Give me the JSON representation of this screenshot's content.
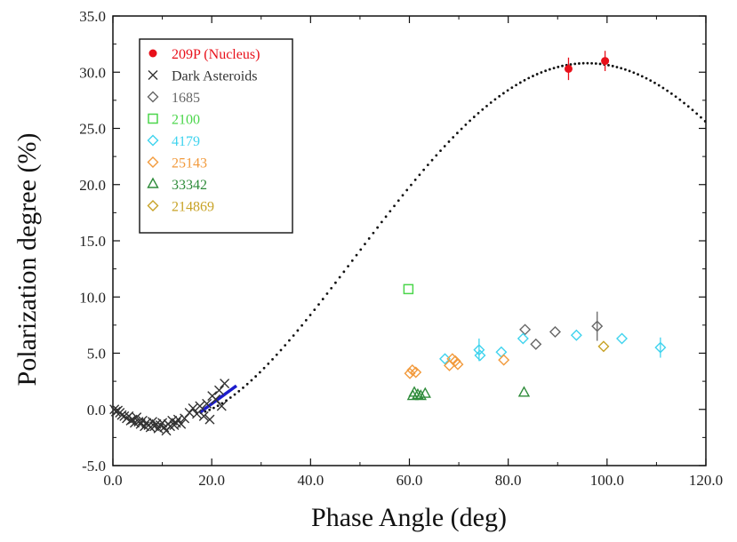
{
  "chart_data": {
    "type": "scatter",
    "xlabel": "Phase Angle (deg)",
    "ylabel": "Polarization degree (%)",
    "xlim": [
      0,
      120
    ],
    "ylim": [
      -5,
      35
    ],
    "x_ticks": [
      "0.0",
      "20.0",
      "40.0",
      "60.0",
      "80.0",
      "100.0",
      "120.0"
    ],
    "y_ticks": [
      "-5.0",
      "0.0",
      "5.0",
      "10.0",
      "15.0",
      "20.0",
      "25.0",
      "30.0",
      "35.0"
    ],
    "grid": false,
    "legend_position": "top-left",
    "series": [
      {
        "name": "209P (Nucleus)",
        "marker": "filled-circle",
        "color": "#e8101a",
        "points": [
          {
            "x": 92.2,
            "y": 30.3,
            "err": 1.0
          },
          {
            "x": 99.6,
            "y": 31.0,
            "err": 0.9
          }
        ]
      },
      {
        "name": "Dark Asteroids",
        "marker": "x",
        "color": "#333333",
        "points": [
          {
            "x": 0.3,
            "y": 0.0
          },
          {
            "x": 0.6,
            "y": -0.2
          },
          {
            "x": 1.0,
            "y": -0.1
          },
          {
            "x": 1.4,
            "y": -0.3
          },
          {
            "x": 1.8,
            "y": -0.5
          },
          {
            "x": 2.3,
            "y": -0.6
          },
          {
            "x": 2.8,
            "y": -0.8
          },
          {
            "x": 3.2,
            "y": -0.6
          },
          {
            "x": 3.6,
            "y": -1.0
          },
          {
            "x": 4.0,
            "y": -0.9
          },
          {
            "x": 4.4,
            "y": -1.2
          },
          {
            "x": 4.8,
            "y": -0.7
          },
          {
            "x": 5.2,
            "y": -1.1
          },
          {
            "x": 5.6,
            "y": -1.3
          },
          {
            "x": 6.0,
            "y": -1.0
          },
          {
            "x": 6.4,
            "y": -1.5
          },
          {
            "x": 6.8,
            "y": -1.2
          },
          {
            "x": 7.2,
            "y": -1.4
          },
          {
            "x": 7.6,
            "y": -1.6
          },
          {
            "x": 8.0,
            "y": -1.1
          },
          {
            "x": 8.4,
            "y": -1.5
          },
          {
            "x": 8.8,
            "y": -1.3
          },
          {
            "x": 9.2,
            "y": -1.7
          },
          {
            "x": 9.6,
            "y": -1.4
          },
          {
            "x": 10.0,
            "y": -1.2
          },
          {
            "x": 10.4,
            "y": -1.6
          },
          {
            "x": 10.8,
            "y": -1.9
          },
          {
            "x": 11.2,
            "y": -1.3
          },
          {
            "x": 11.6,
            "y": -1.5
          },
          {
            "x": 12.0,
            "y": -1.0
          },
          {
            "x": 12.4,
            "y": -1.4
          },
          {
            "x": 12.8,
            "y": -1.2
          },
          {
            "x": 13.2,
            "y": -0.9
          },
          {
            "x": 13.8,
            "y": -1.3
          },
          {
            "x": 14.5,
            "y": -0.8
          },
          {
            "x": 15.5,
            "y": -0.3
          },
          {
            "x": 16.2,
            "y": 0.1
          },
          {
            "x": 17.0,
            "y": -0.4
          },
          {
            "x": 17.6,
            "y": 0.3
          },
          {
            "x": 18.4,
            "y": -0.6
          },
          {
            "x": 19.0,
            "y": 0.5
          },
          {
            "x": 19.6,
            "y": -0.9
          },
          {
            "x": 20.1,
            "y": 1.2
          },
          {
            "x": 20.8,
            "y": 0.9
          },
          {
            "x": 21.5,
            "y": 1.7
          },
          {
            "x": 22.0,
            "y": 0.3
          },
          {
            "x": 22.6,
            "y": 2.3
          }
        ]
      },
      {
        "name": "1685",
        "marker": "diamond",
        "color": "#666666",
        "points": [
          {
            "x": 83.4,
            "y": 7.1
          },
          {
            "x": 85.6,
            "y": 5.8
          },
          {
            "x": 89.5,
            "y": 6.9
          },
          {
            "x": 98.0,
            "y": 7.4,
            "err": 1.3
          }
        ]
      },
      {
        "name": "2100",
        "marker": "square",
        "color": "#4bd64b",
        "points": [
          {
            "x": 59.8,
            "y": 10.7
          }
        ]
      },
      {
        "name": "4179",
        "marker": "diamond",
        "color": "#3fd3ee",
        "points": [
          {
            "x": 67.2,
            "y": 4.5
          },
          {
            "x": 74.1,
            "y": 5.3,
            "err": 1.0
          },
          {
            "x": 74.3,
            "y": 4.8
          },
          {
            "x": 78.6,
            "y": 5.1
          },
          {
            "x": 83.0,
            "y": 6.3
          },
          {
            "x": 93.8,
            "y": 6.6
          },
          {
            "x": 103.0,
            "y": 6.3
          },
          {
            "x": 110.8,
            "y": 5.5,
            "err": 0.9
          }
        ]
      },
      {
        "name": "25143",
        "marker": "diamond",
        "color": "#f29a3c",
        "points": [
          {
            "x": 60.1,
            "y": 3.2
          },
          {
            "x": 60.6,
            "y": 3.5
          },
          {
            "x": 61.3,
            "y": 3.3
          },
          {
            "x": 68.1,
            "y": 3.9
          },
          {
            "x": 68.7,
            "y": 4.5
          },
          {
            "x": 69.3,
            "y": 4.3
          },
          {
            "x": 69.8,
            "y": 4.0
          },
          {
            "x": 79.1,
            "y": 4.4
          }
        ]
      },
      {
        "name": "33342",
        "marker": "triangle",
        "color": "#2e8b3a",
        "points": [
          {
            "x": 60.7,
            "y": 1.2
          },
          {
            "x": 61.0,
            "y": 1.5
          },
          {
            "x": 61.7,
            "y": 1.3
          },
          {
            "x": 62.3,
            "y": 1.2
          },
          {
            "x": 63.2,
            "y": 1.4
          },
          {
            "x": 83.2,
            "y": 1.5
          }
        ]
      },
      {
        "name": "214869",
        "marker": "diamond",
        "color": "#c8a327",
        "points": [
          {
            "x": 99.3,
            "y": 5.6
          }
        ]
      }
    ],
    "curves": [
      {
        "style": "dotted",
        "color": "#111111",
        "x_range": [
          17,
          120
        ],
        "model": "linear-exponential fit",
        "peak": {
          "x": 96,
          "y": 30.8
        }
      },
      {
        "style": "solid",
        "color": "#1c1ccc",
        "x": [
          17.5,
          25.0
        ],
        "y": [
          -0.3,
          2.1
        ]
      }
    ]
  }
}
